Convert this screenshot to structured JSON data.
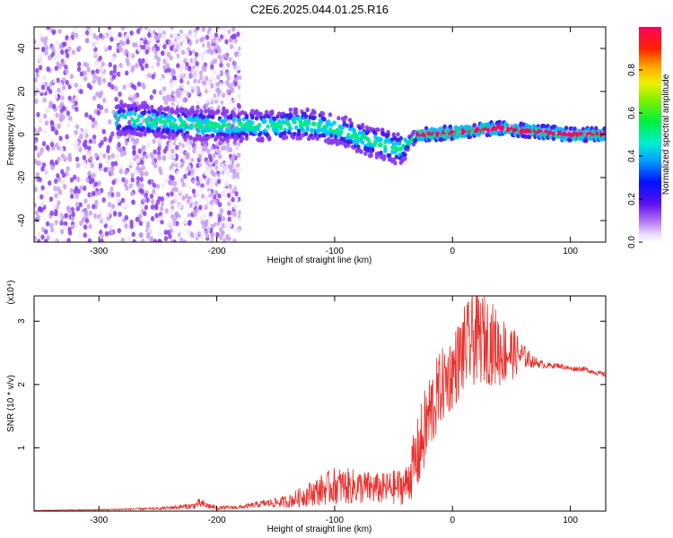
{
  "title": "C2E6.2025.044.01.25.R16",
  "colors": {
    "snr_line": "#e8302c",
    "background": "#ffffff",
    "colormap": [
      "#f0e6ff",
      "#c8a0f0",
      "#8a3cf0",
      "#3a1ef0",
      "#0050ff",
      "#00c8ff",
      "#00e88a",
      "#40f000",
      "#d0f000",
      "#ffb000",
      "#ff3000",
      "#ff0050"
    ]
  },
  "chart_data": [
    {
      "type": "heatmap",
      "name": "spectrogram",
      "xlabel": "Height of straight line (km)",
      "ylabel": "Frequency (Hz)",
      "xlim": [
        -355,
        130
      ],
      "ylim": [
        -50,
        50
      ],
      "xticks": [
        -300,
        -200,
        -100,
        0,
        100
      ],
      "yticks": [
        -40,
        -20,
        0,
        20,
        40
      ],
      "xtick_labels": [
        "-300",
        "-200",
        "-100",
        "0",
        "100"
      ],
      "ytick_labels": [
        "-40",
        "-20",
        "0",
        "20",
        "40"
      ],
      "ridge": {
        "x": [
          -270,
          -250,
          -230,
          -210,
          -190,
          -170,
          -150,
          -130,
          -110,
          -90,
          -70,
          -55,
          -45,
          -35,
          -30,
          -20,
          0,
          20,
          40,
          60,
          80,
          100,
          130
        ],
        "y": [
          7,
          6,
          5,
          4,
          4,
          4,
          4,
          5,
          4,
          1,
          -3,
          -5,
          -7,
          -3,
          0,
          0,
          1,
          2,
          3,
          2,
          1,
          0,
          0
        ]
      },
      "colorbar": {
        "label": "Normalized spectral amplitude",
        "range": [
          0,
          1
        ],
        "ticks": [
          0.0,
          0.2,
          0.4,
          0.6,
          0.8
        ],
        "tick_labels": [
          "0.0",
          "0.2",
          "0.4",
          "0.6",
          "0.8"
        ]
      }
    },
    {
      "type": "line",
      "name": "snr",
      "xlabel": "Height of straight line (km)",
      "ylabel": "SNR (10 * v/v)",
      "yscale_label": "(x10⁴)",
      "xlim": [
        -355,
        130
      ],
      "ylim": [
        0,
        3.4
      ],
      "xticks": [
        -300,
        -200,
        -100,
        0,
        100
      ],
      "yticks": [
        1,
        2,
        3
      ],
      "xtick_labels": [
        "-300",
        "-200",
        "-100",
        "0",
        "100"
      ],
      "ytick_labels": [
        "1",
        "2",
        "3"
      ],
      "series": [
        {
          "x": [
            -355,
            -300,
            -250,
            -220,
            -215,
            -200,
            -180,
            -160,
            -140,
            -120,
            -100,
            -80,
            -60,
            -40,
            -30,
            -20,
            -10,
            0,
            10,
            20,
            30,
            40,
            50,
            60,
            70,
            80,
            90,
            100,
            110,
            120,
            130
          ],
          "y": [
            0.01,
            0.02,
            0.04,
            0.08,
            0.12,
            0.05,
            0.06,
            0.12,
            0.15,
            0.28,
            0.4,
            0.38,
            0.35,
            0.4,
            0.85,
            1.5,
            1.95,
            2.2,
            2.55,
            2.75,
            2.7,
            2.55,
            2.5,
            2.45,
            2.35,
            2.3,
            2.3,
            2.25,
            2.25,
            2.2,
            2.15
          ],
          "noise": [
            0.005,
            0.01,
            0.02,
            0.05,
            0.08,
            0.03,
            0.03,
            0.06,
            0.1,
            0.2,
            0.3,
            0.28,
            0.25,
            0.3,
            0.6,
            0.7,
            0.6,
            0.6,
            0.7,
            0.75,
            0.7,
            0.6,
            0.45,
            0.2,
            0.08,
            0.05,
            0.04,
            0.04,
            0.04,
            0.04,
            0.04
          ]
        }
      ]
    }
  ]
}
